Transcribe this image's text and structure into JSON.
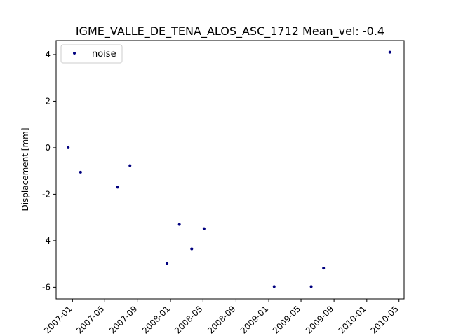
{
  "chart_data": {
    "type": "scatter",
    "title": "IGME_VALLE_DE_TENA_ALOS_ASC_1712     Mean_vel: -0.4",
    "xlabel": "",
    "ylabel": "Displacement [mm]",
    "xlim": [
      "2006-11-01",
      "2010-05-20"
    ],
    "ylim": [
      -6.5,
      4.6
    ],
    "x_ticks": [
      "2007-01",
      "2007-05",
      "2007-09",
      "2008-01",
      "2008-05",
      "2008-09",
      "2009-01",
      "2009-05",
      "2009-09",
      "2010-01",
      "2010-05"
    ],
    "y_ticks": [
      4,
      2,
      0,
      -2,
      -4,
      -6
    ],
    "grid": false,
    "legend_position": "upper left",
    "series": [
      {
        "name": "noise",
        "color": "#00007f",
        "marker": "dot",
        "points": [
          {
            "x": "2006-12-16",
            "y": 0.0
          },
          {
            "x": "2007-01-31",
            "y": -1.05
          },
          {
            "x": "2007-06-18",
            "y": -1.7
          },
          {
            "x": "2007-08-03",
            "y": -0.77
          },
          {
            "x": "2007-12-19",
            "y": -4.97
          },
          {
            "x": "2008-02-03",
            "y": -3.3
          },
          {
            "x": "2008-03-20",
            "y": -4.35
          },
          {
            "x": "2008-05-05",
            "y": -3.48
          },
          {
            "x": "2009-01-21",
            "y": -5.97
          },
          {
            "x": "2009-06-08",
            "y": -5.97
          },
          {
            "x": "2009-07-24",
            "y": -5.18
          },
          {
            "x": "2010-03-28",
            "y": 4.1
          }
        ]
      }
    ]
  }
}
